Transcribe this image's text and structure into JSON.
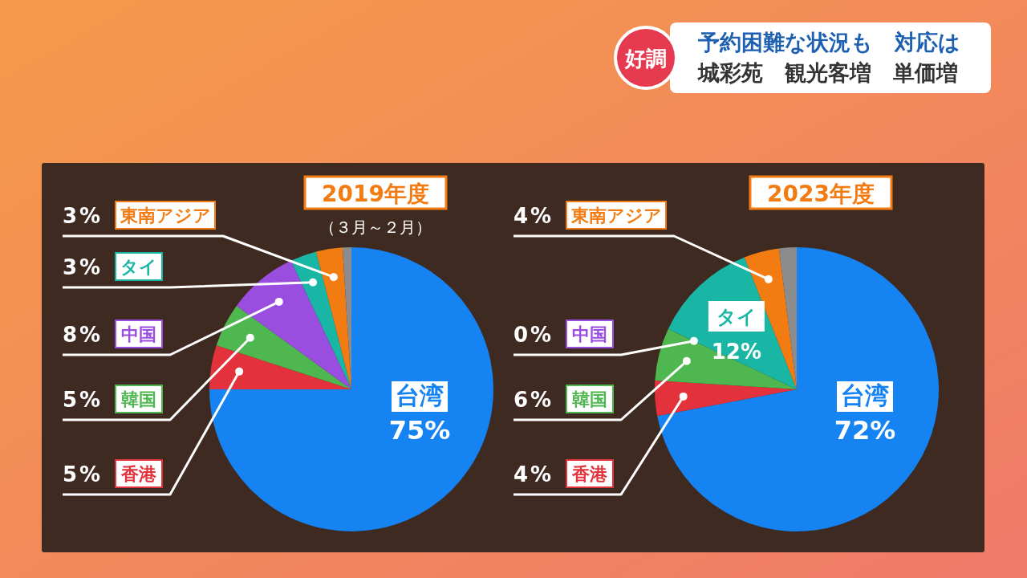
{
  "chart_data": [
    {
      "type": "pie",
      "title": "2019年度",
      "subtitle": "（３月～２月）",
      "categories": [
        "台湾",
        "香港",
        "韓国",
        "中国",
        "タイ",
        "東南アジア",
        null
      ],
      "values": [
        75,
        5,
        5,
        8,
        3,
        3,
        1
      ],
      "colors": [
        "#1584f2",
        "#e3323b",
        "#4fb74f",
        "#9a4ee0",
        "#19b6a6",
        "#f27c12",
        "#8c8c8c"
      ],
      "value_labels": [
        "75%",
        "5%",
        "5%",
        "8%",
        "3%",
        "3%",
        null
      ],
      "annotations": [
        "好調",
        "予約困難な状況も　対応は",
        "城彩苑　観光客増　単価増"
      ]
    },
    {
      "type": "pie",
      "title": "2023年度",
      "categories": [
        "台湾",
        "香港",
        "韓国",
        "中国",
        "タイ",
        "東南アジア",
        null
      ],
      "values": [
        72,
        4,
        6,
        0,
        12,
        4,
        2
      ],
      "colors": [
        "#1584f2",
        "#e3323b",
        "#4fb74f",
        "#9a4ee0",
        "#19b6a6",
        "#f27c12",
        "#8c8c8c"
      ],
      "value_labels": [
        "72%",
        "4%",
        "6%",
        "0%",
        "12%",
        "4%",
        null
      ]
    }
  ]
}
